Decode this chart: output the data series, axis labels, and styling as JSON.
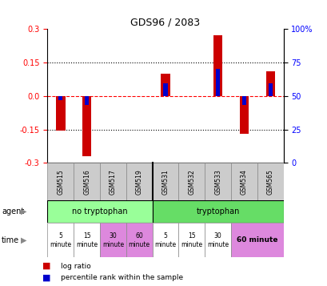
{
  "title": "GDS96 / 2083",
  "samples": [
    "GSM515",
    "GSM516",
    "GSM517",
    "GSM519",
    "GSM531",
    "GSM532",
    "GSM533",
    "GSM534",
    "GSM565"
  ],
  "log_ratio": [
    -0.155,
    -0.27,
    0.0,
    0.0,
    0.1,
    0.0,
    0.27,
    -0.17,
    0.11
  ],
  "percentile": [
    -0.018,
    -0.04,
    0.0,
    0.0,
    0.055,
    0.0,
    0.12,
    -0.04,
    0.055
  ],
  "ylim": [
    -0.3,
    0.3
  ],
  "yticks_left": [
    -0.3,
    -0.15,
    0.0,
    0.15,
    0.3
  ],
  "yticks_right": [
    0,
    25,
    50,
    75,
    100
  ],
  "hlines_dotted": [
    -0.15,
    0.15
  ],
  "red_color": "#cc0000",
  "blue_color": "#0000cc",
  "bg_color": "#ffffff",
  "agent_no_tryp_color": "#99ff99",
  "agent_tryp_color": "#66dd66",
  "time_colors_no_tryp": [
    "#ffffff",
    "#ffffff",
    "#dd88dd",
    "#dd88dd"
  ],
  "time_colors_tryp": [
    "#ffffff",
    "#ffffff",
    "#ffffff",
    "#dd88dd"
  ],
  "sample_box_color": "#cccccc",
  "legend_red": "log ratio",
  "legend_blue": "percentile rank within the sample"
}
